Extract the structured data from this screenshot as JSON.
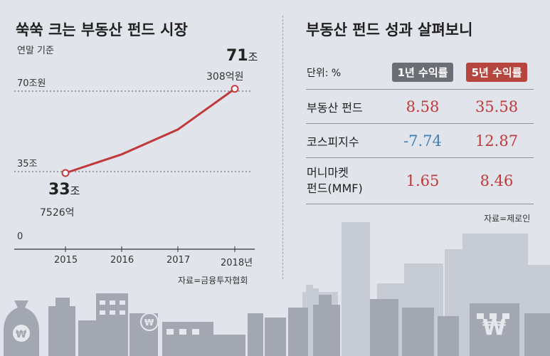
{
  "left": {
    "title": "쑥쑥 크는 부동산 펀드 시장",
    "subtitle": "연말 기준",
    "source": "자료=금융투자협회",
    "label_start_big": "33",
    "label_start_unit": "조",
    "label_start_sub": "7526억",
    "label_end_big": "71",
    "label_end_unit": "조",
    "label_end_sub": "308억원"
  },
  "right": {
    "title": "부동산 펀드 성과 살펴보니",
    "unit": "단위: %",
    "col1": "1년 수익률",
    "col2": "5년 수익률",
    "rows": [
      {
        "name": "부동산 펀드",
        "name2": "",
        "v1": "8.58",
        "v2": "35.58"
      },
      {
        "name": "코스피지수",
        "name2": "",
        "v1": "-7.74",
        "v2": "12.87"
      },
      {
        "name": "머니마켓",
        "name2": "펀드(MMF)",
        "v1": "1.65",
        "v2": "8.46"
      }
    ],
    "source": "자료=제로인"
  },
  "colors": {
    "line": "#c0393b",
    "col1": "#6b6f75",
    "col2": "#b5453d",
    "neg": "#3f7fb5",
    "pos": "#c0393b"
  },
  "chart_data": {
    "type": "line",
    "title": "쑥쑥 크는 부동산 펀드 시장",
    "subtitle": "연말 기준",
    "x": [
      "2015",
      "2016",
      "2017",
      "2018년"
    ],
    "series": [
      {
        "values": [
          33.75,
          42,
          53,
          71.03
        ]
      }
    ],
    "ylim": [
      0,
      71
    ],
    "yticks": [
      0,
      35,
      70
    ],
    "ytick_labels": [
      "0",
      "35조",
      "70조원"
    ],
    "grid": false
  }
}
